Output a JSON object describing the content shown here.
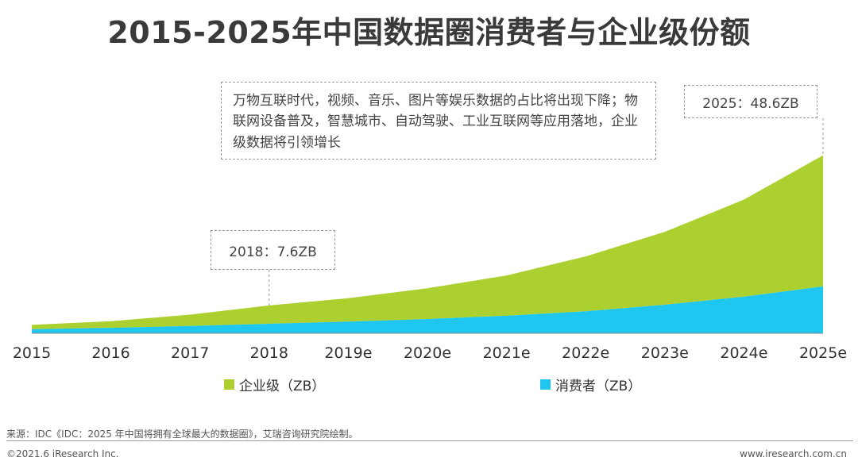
{
  "title": "2015-2025年中国数据圈消费者与企业级份额",
  "chart_data": {
    "type": "area",
    "stacked": true,
    "categories": [
      "2015",
      "2016",
      "2017",
      "2018",
      "2019e",
      "2020e",
      "2021e",
      "2022e",
      "2023e",
      "2024e",
      "2025e"
    ],
    "series": [
      {
        "name": "消费者（ZB）",
        "color": "#1fc6ef",
        "values": [
          1.1,
          1.5,
          2.0,
          2.6,
          3.2,
          3.9,
          4.8,
          6.0,
          7.8,
          10.0,
          12.8
        ]
      },
      {
        "name": "企业级（ZB）",
        "color": "#acd030",
        "values": [
          1.2,
          1.8,
          3.1,
          5.0,
          6.4,
          8.4,
          11.0,
          15.0,
          19.9,
          26.5,
          35.8
        ]
      }
    ],
    "totals": [
      2.3,
      3.3,
      5.1,
      7.6,
      9.6,
      12.3,
      15.8,
      21.0,
      27.7,
      36.5,
      48.6
    ],
    "ylim": [
      0,
      52
    ],
    "grid": false,
    "legend_position": "bottom",
    "annotations": {
      "note": "万物互联时代，视频、音乐、图片等娱乐数据的占比将出现下降；物联网设备普及，智慧城市、自动驾驶、工业互联网等应用落地，企业级数据将引领增长",
      "label_2018": "2018：7.6ZB",
      "label_2025": "2025：48.6ZB"
    }
  },
  "footer": {
    "source": "来源：IDC《IDC：2025 年中国将拥有全球最大的数据圈》，艾瑞咨询研究院绘制。",
    "copyright": "©2021.6 iResearch Inc.",
    "website": "www.iresearch.com.cn"
  }
}
